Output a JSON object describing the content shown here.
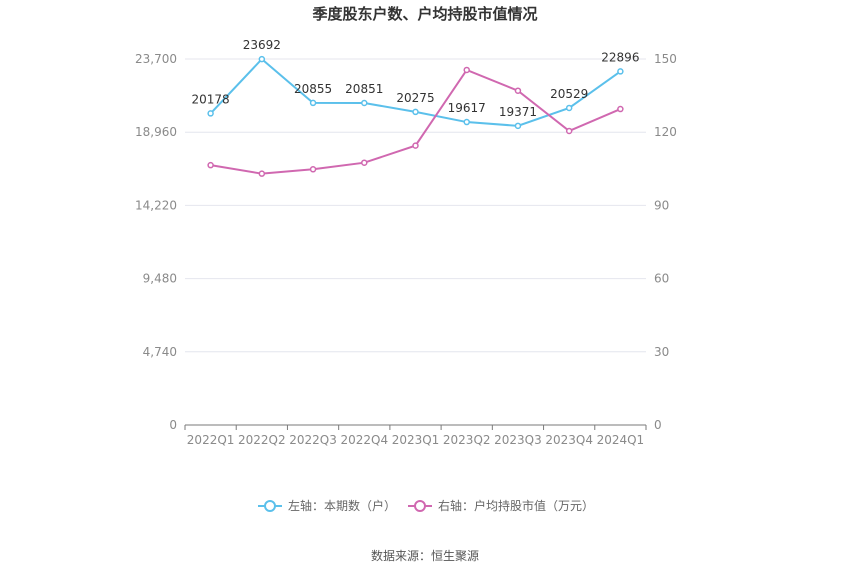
{
  "chart_data": {
    "type": "line",
    "title": "季度股东户数、户均持股市值情况",
    "categories": [
      "2022Q1",
      "2022Q2",
      "2022Q3",
      "2022Q4",
      "2023Q1",
      "2023Q2",
      "2023Q3",
      "2023Q4",
      "2024Q1"
    ],
    "left_axis": {
      "ticks": [
        "0",
        "4,740",
        "9,480",
        "14,220",
        "18,960",
        "23,700"
      ],
      "ylim": [
        0,
        23700
      ]
    },
    "right_axis": {
      "ticks": [
        "0",
        "30",
        "60",
        "90",
        "120",
        "150"
      ],
      "ylim": [
        0,
        150
      ]
    },
    "grid": true,
    "legend_position": "bottom",
    "series": [
      {
        "name": "左轴：本期数（户）",
        "axis": "left",
        "color": "#5bc0eb",
        "values": [
          20178,
          23692,
          20855,
          20851,
          20275,
          19617,
          19371,
          20529,
          22896
        ],
        "labels": [
          "20178",
          "23692",
          "20855",
          "20851",
          "20275",
          "19617",
          "19371",
          "20529",
          "22896"
        ]
      },
      {
        "name": "右轴：户均持股市值（万元）",
        "axis": "right",
        "color": "#d068b0",
        "values": [
          106.5,
          103.0,
          104.8,
          107.5,
          114.5,
          145.5,
          137.0,
          120.5,
          129.5
        ]
      }
    ]
  },
  "footer": {
    "source": "数据来源：恒生聚源"
  }
}
